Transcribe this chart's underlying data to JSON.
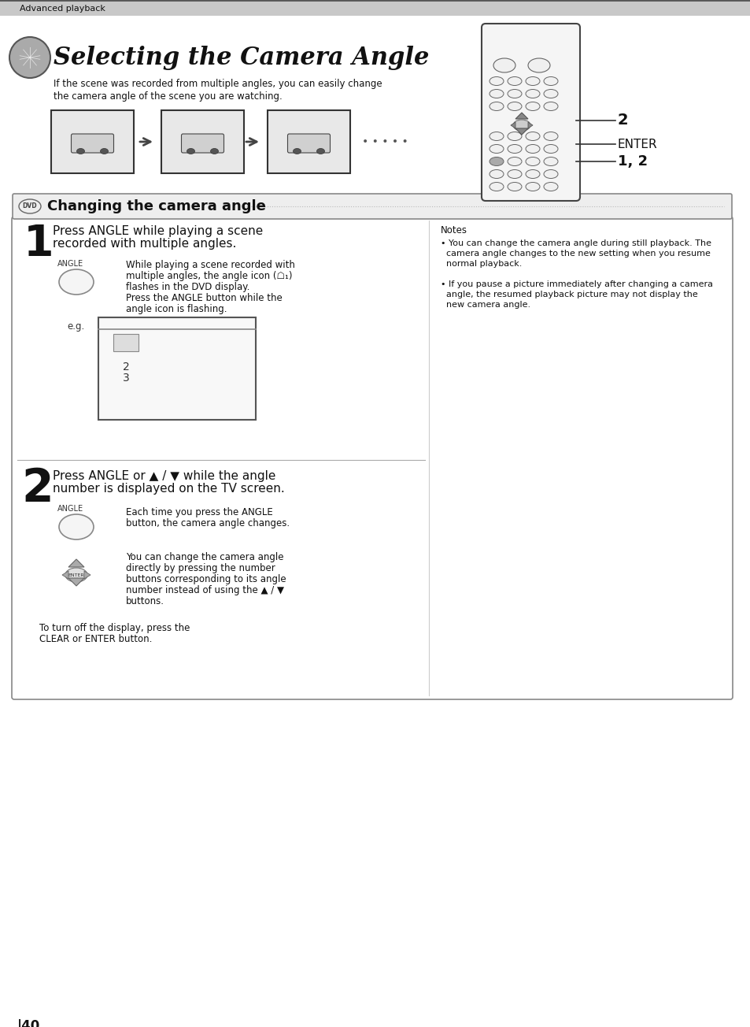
{
  "bg_color": "#ffffff",
  "page_width": 9.54,
  "page_height": 13.04,
  "header_text": "Advanced playback",
  "title": "Selecting the Camera Angle",
  "subtitle_line1": "If the scene was recorded from multiple angles, you can easily change",
  "subtitle_line2": "the camera angle of the scene you are watching.",
  "section_title": "Changing the camera angle",
  "step1_num": "1",
  "step1_title_line1": "Press ANGLE while playing a scene",
  "step1_title_line2": "recorded with multiple angles.",
  "step1_label": "ANGLE",
  "step1_desc_line1": "While playing a scene recorded with",
  "step1_desc_line2": "multiple angles, the angle icon (☖₁)",
  "step1_desc_line3": "flashes in the DVD display.",
  "step1_desc_line4": "Press the ANGLE button while the",
  "step1_desc_line5": "angle icon is flashing.",
  "step1_eg": "e.g.",
  "step2_num": "2",
  "step2_title_line1": "Press ANGLE or ▲ / ▼ while the angle",
  "step2_title_line2": "number is displayed on the TV screen.",
  "step2_label": "ANGLE",
  "step2_desc1_line1": "Each time you press the ANGLE",
  "step2_desc1_line2": "button, the camera angle changes.",
  "step2_desc2_line1": "You can change the camera angle",
  "step2_desc2_line2": "directly by pressing the number",
  "step2_desc2_line3": "buttons corresponding to its angle",
  "step2_desc2_line4": "number instead of using the ▲ / ▼",
  "step2_desc2_line5": "buttons.",
  "step2_desc3_line1": "To turn off the display, press the",
  "step2_desc3_line2": "CLEAR or ENTER button.",
  "notes_title": "Notes",
  "note1_line1": "• You can change the camera angle during still playback. The",
  "note1_line2": "  camera angle changes to the new setting when you resume",
  "note1_line3": "  normal playback.",
  "note2_line1": "• If you pause a picture immediately after changing a camera",
  "note2_line2": "  angle, the resumed playback picture may not display the",
  "note2_line3": "  new camera angle.",
  "remote_label2": "2",
  "remote_label_enter": "ENTER",
  "remote_label_12": "1, 2",
  "footer_page": "|40"
}
